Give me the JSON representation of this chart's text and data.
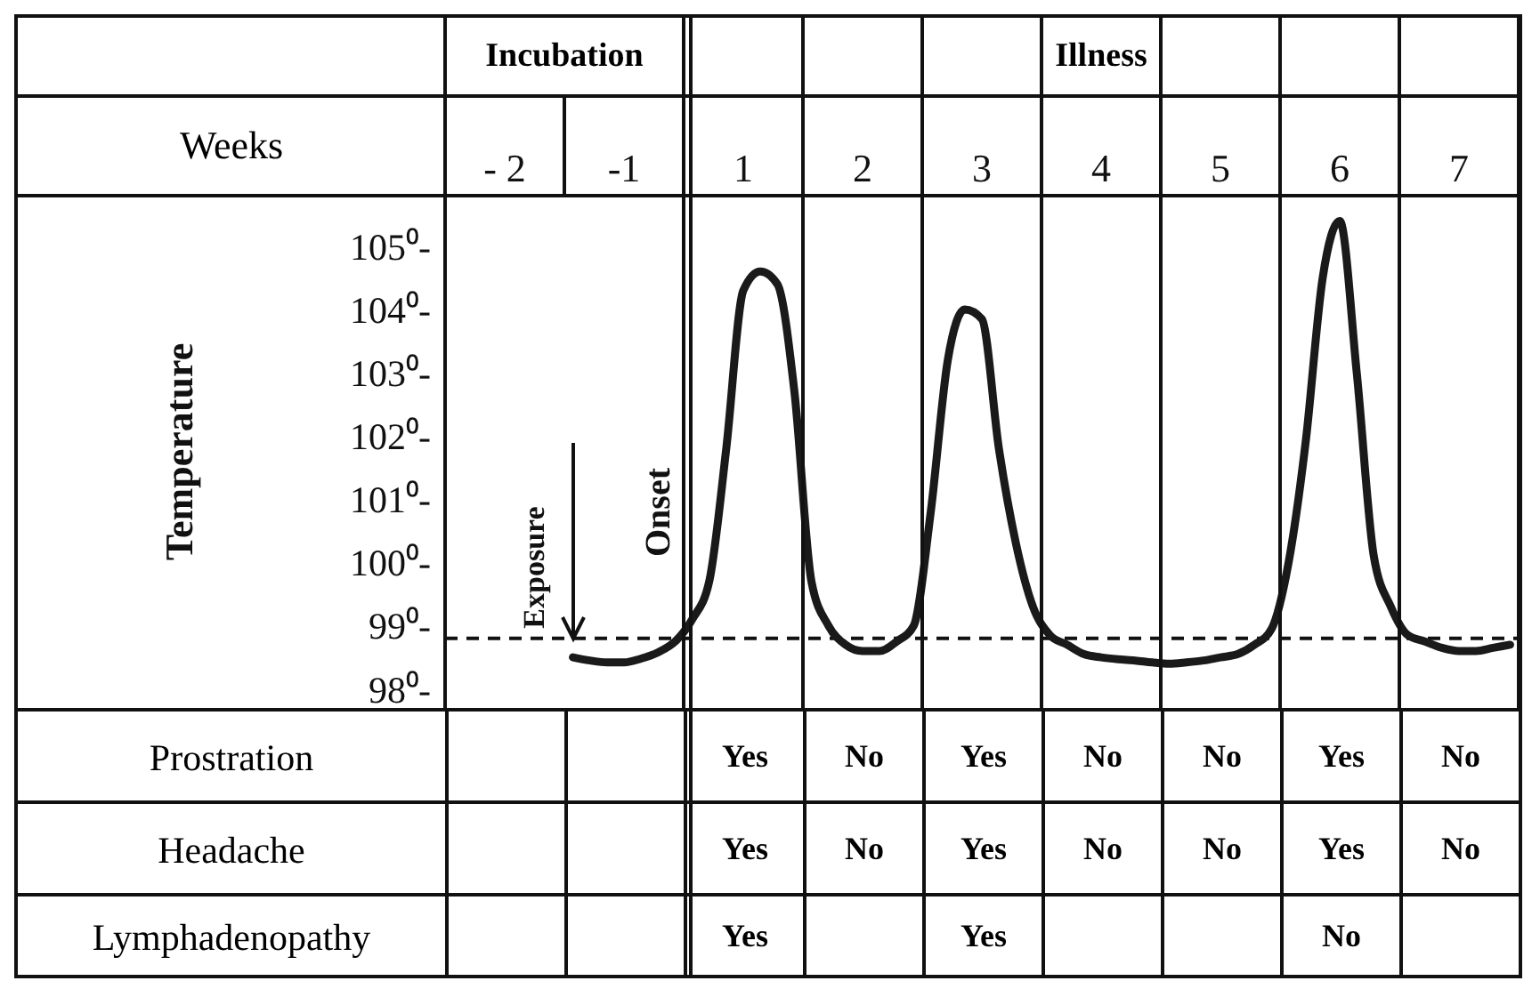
{
  "chart_data": [
    {
      "type": "line",
      "xlabel": "Weeks",
      "ylabel": "Temperature",
      "annotations": [
        "Incubation",
        "Illness",
        "Onset",
        {
          "text": "Exposure",
          "y": 98.8
        }
      ],
      "categories": [
        null,
        null,
        null,
        "- 2",
        null,
        null,
        null,
        null,
        null,
        null,
        "-1",
        null,
        null,
        null,
        null,
        null,
        null,
        "1",
        null,
        null,
        null,
        null,
        null,
        null,
        "2",
        null,
        null,
        null,
        null,
        null,
        null,
        "3",
        null,
        null,
        null,
        null,
        null,
        null,
        "4",
        null,
        null,
        null,
        null,
        null,
        null,
        "5",
        null,
        null,
        null,
        null,
        null,
        null,
        "6",
        null,
        null,
        null,
        null,
        null,
        null,
        "7",
        null,
        null,
        null
      ],
      "ylim": [
        97.7,
        105.8
      ],
      "yticks": [
        {
          "value": 98,
          "label": "98⁰-"
        },
        {
          "value": 99,
          "label": "99⁰-"
        },
        {
          "value": 100,
          "label": "100⁰-"
        },
        {
          "value": 101,
          "label": "101⁰-"
        },
        {
          "value": 102,
          "label": "102⁰-"
        },
        {
          "value": 103,
          "label": "103⁰-"
        },
        {
          "value": 104,
          "label": "104⁰-"
        },
        {
          "value": 105,
          "label": "105⁰-"
        }
      ],
      "ref_lines": [
        {
          "axis": "y",
          "value": 98.8,
          "line_style": "dashed"
        }
      ],
      "line_style": "solid",
      "series": [
        {
          "color": "#1a1a1a",
          "values": [
            null,
            null,
            null,
            null,
            null,
            null,
            null,
            98.5,
            98.45,
            98.42,
            98.42,
            98.48,
            98.58,
            98.75,
            99.1,
            99.7,
            101.8,
            104.3,
            104.6,
            104.4,
            102.7,
            99.7,
            99.0,
            98.7,
            98.6,
            98.6,
            98.75,
            99.0,
            100.8,
            103.2,
            104.0,
            103.85,
            101.8,
            100.3,
            99.3,
            98.85,
            98.7,
            98.55,
            98.5,
            98.47,
            98.45,
            98.42,
            98.4,
            98.42,
            98.45,
            98.5,
            98.55,
            98.7,
            98.95,
            100.0,
            101.9,
            104.5,
            105.4,
            103.0,
            100.1,
            99.3,
            98.85,
            98.75,
            98.65,
            98.6,
            98.6,
            98.65,
            98.7
          ]
        }
      ]
    },
    {
      "type": "other",
      "categories": [
        null,
        null,
        null,
        null,
        null,
        null,
        null,
        null,
        null
      ],
      "y_categories": [
        "Prostration",
        "Headache",
        "Lymphadenopathy"
      ],
      "cell_labels": [
        [
          null,
          null,
          "Yes",
          "No",
          "Yes",
          "No",
          "No",
          "Yes",
          "No"
        ],
        [
          null,
          null,
          "Yes",
          "No",
          "Yes",
          "No",
          "No",
          "Yes",
          "No"
        ],
        [
          null,
          null,
          "Yes",
          null,
          "Yes",
          null,
          null,
          "No",
          null
        ]
      ]
    }
  ]
}
